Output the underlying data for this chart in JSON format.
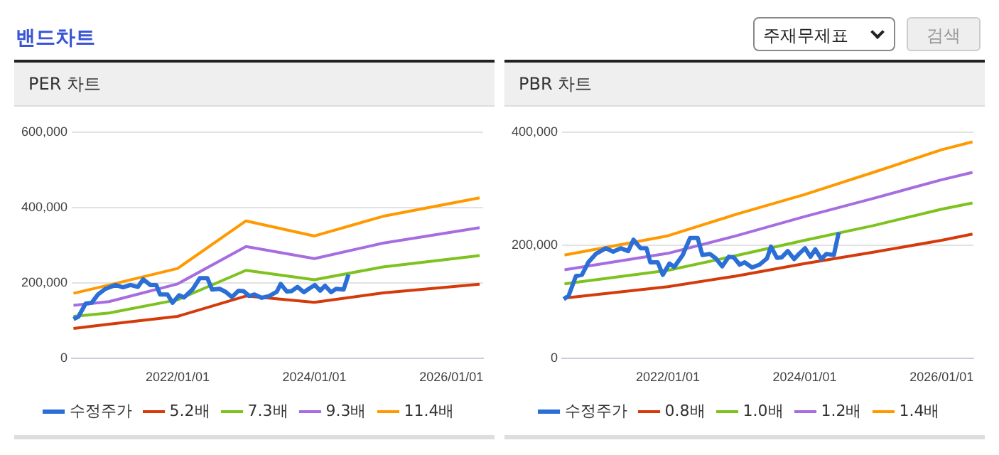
{
  "chart_data": [
    {
      "type": "line",
      "title": "PER 차트",
      "annotations": [
        "밴드차트"
      ],
      "xlim": [
        "2020-06-15",
        "2026-06-20"
      ],
      "xticks": [
        {
          "value": "2022-01-01",
          "label": "2022/01/01"
        },
        {
          "value": "2024-01-01",
          "label": "2024/01/01"
        },
        {
          "value": "2026-01-01",
          "label": "2026/01/01"
        }
      ],
      "ylim": [
        0,
        600000
      ],
      "yticks": [
        {
          "value": 0,
          "label": "0"
        },
        {
          "value": 200000,
          "label": "200,000"
        },
        {
          "value": 400000,
          "label": "400,000"
        },
        {
          "value": 600000,
          "label": "600,000"
        }
      ],
      "grid": "y",
      "legend": "bottom",
      "marker": "none",
      "line_style": "solid",
      "series": [
        {
          "name": "수정주가",
          "color": "#2b6fd6",
          "x": [
            "2020-06-24",
            "2020-07-20",
            "2020-08-28",
            "2020-09-29",
            "2020-11-02",
            "2020-12-12",
            "2021-02-04",
            "2021-03-15",
            "2021-04-24",
            "2021-06-03",
            "2021-07-01",
            "2021-08-08",
            "2021-09-09",
            "2021-09-29",
            "2021-11-08",
            "2021-12-05",
            "2022-01-09",
            "2022-02-04",
            "2022-03-21",
            "2022-04-29",
            "2022-06-09",
            "2022-07-04",
            "2022-08-13",
            "2022-09-14",
            "2022-10-18",
            "2022-11-22",
            "2022-12-18",
            "2023-01-19",
            "2023-02-15",
            "2023-03-26",
            "2023-05-05",
            "2023-06-14",
            "2023-07-05",
            "2023-08-06",
            "2023-09-01",
            "2023-10-03",
            "2023-11-06",
            "2023-12-02",
            "2024-01-03",
            "2024-02-01",
            "2024-02-27",
            "2024-03-30",
            "2024-04-26",
            "2024-06-05",
            "2024-07-01"
          ],
          "values": [
            105000,
            111000,
            146000,
            148000,
            170000,
            185000,
            195000,
            189000,
            195000,
            190000,
            210000,
            195000,
            195000,
            170000,
            170000,
            148000,
            168000,
            162000,
            183000,
            213000,
            213000,
            183000,
            185000,
            177000,
            163000,
            180000,
            179000,
            166000,
            170000,
            161000,
            166000,
            177000,
            198000,
            178000,
            179000,
            190000,
            176000,
            185000,
            195000,
            180000,
            193000,
            176000,
            185000,
            183000,
            223000
          ]
        },
        {
          "name": "5.2배",
          "color": "#d43a0a",
          "x": [
            "2020-06-24",
            "2020-12-31",
            "2022-01-01",
            "2023-01-01",
            "2024-01-01",
            "2025-01-01",
            "2026-06-01"
          ],
          "values": [
            80000,
            91000,
            112000,
            166000,
            149000,
            174000,
            197000
          ]
        },
        {
          "name": "7.3배",
          "color": "#7dc21e",
          "x": [
            "2020-06-24",
            "2020-12-31",
            "2022-01-01",
            "2023-01-01",
            "2024-01-01",
            "2025-01-01",
            "2026-06-01"
          ],
          "values": [
            112000,
            121000,
            156000,
            234000,
            209000,
            243000,
            273000
          ]
        },
        {
          "name": "9.3배",
          "color": "#a66de0",
          "x": [
            "2020-06-24",
            "2020-12-31",
            "2022-01-01",
            "2023-01-01",
            "2024-01-01",
            "2025-01-01",
            "2026-06-01"
          ],
          "values": [
            141000,
            151000,
            198000,
            297000,
            265000,
            306000,
            347000
          ]
        },
        {
          "name": "11.4배",
          "color": "#ff9900",
          "x": [
            "2020-06-24",
            "2020-12-31",
            "2022-01-01",
            "2023-01-01",
            "2024-01-01",
            "2025-01-01",
            "2026-06-01"
          ],
          "values": [
            173000,
            195000,
            239000,
            365000,
            325000,
            377000,
            426000
          ]
        }
      ]
    },
    {
      "type": "line",
      "title": "PBR 차트",
      "annotations": [
        "주재무제표",
        "검색"
      ],
      "xlim": [
        "2020-06-15",
        "2026-06-20"
      ],
      "xticks": [
        {
          "value": "2022-01-01",
          "label": "2022/01/01"
        },
        {
          "value": "2024-01-01",
          "label": "2024/01/01"
        },
        {
          "value": "2026-01-01",
          "label": "2026/01/01"
        }
      ],
      "ylim": [
        0,
        400000
      ],
      "yticks": [
        {
          "value": 0,
          "label": "0"
        },
        {
          "value": 200000,
          "label": "200,000"
        },
        {
          "value": 400000,
          "label": "400,000"
        }
      ],
      "grid": "y",
      "legend": "bottom",
      "marker": "none",
      "line_style": "solid",
      "series": [
        {
          "name": "수정주가",
          "color": "#2b6fd6",
          "x": [
            "2020-06-24",
            "2020-07-20",
            "2020-08-28",
            "2020-09-29",
            "2020-11-02",
            "2020-12-12",
            "2021-02-04",
            "2021-03-15",
            "2021-04-24",
            "2021-06-03",
            "2021-07-01",
            "2021-08-08",
            "2021-09-09",
            "2021-09-29",
            "2021-11-08",
            "2021-12-05",
            "2022-01-09",
            "2022-02-04",
            "2022-03-21",
            "2022-04-29",
            "2022-06-09",
            "2022-07-04",
            "2022-08-13",
            "2022-09-14",
            "2022-10-18",
            "2022-11-22",
            "2022-12-18",
            "2023-01-19",
            "2023-02-15",
            "2023-03-26",
            "2023-05-05",
            "2023-06-14",
            "2023-07-05",
            "2023-08-06",
            "2023-09-01",
            "2023-10-03",
            "2023-11-06",
            "2023-12-02",
            "2024-01-03",
            "2024-02-01",
            "2024-02-27",
            "2024-03-30",
            "2024-04-26",
            "2024-06-05",
            "2024-07-01"
          ],
          "values": [
            105000,
            111000,
            146000,
            148000,
            170000,
            185000,
            195000,
            189000,
            195000,
            190000,
            210000,
            195000,
            195000,
            170000,
            170000,
            148000,
            168000,
            162000,
            183000,
            213000,
            213000,
            183000,
            185000,
            177000,
            163000,
            180000,
            179000,
            166000,
            170000,
            161000,
            166000,
            177000,
            198000,
            178000,
            179000,
            190000,
            176000,
            185000,
            195000,
            180000,
            193000,
            176000,
            185000,
            183000,
            223000
          ]
        },
        {
          "name": "0.8배",
          "color": "#d43a0a",
          "x": [
            "2020-06-28",
            "2022-01-01",
            "2023-01-01",
            "2024-01-01",
            "2025-01-01",
            "2026-01-01",
            "2026-06-15"
          ],
          "values": [
            107000,
            127000,
            146000,
            168000,
            188000,
            209000,
            220000
          ]
        },
        {
          "name": "1.0배",
          "color": "#7dc21e",
          "x": [
            "2020-06-28",
            "2022-01-01",
            "2023-01-01",
            "2024-01-01",
            "2025-01-01",
            "2026-01-01",
            "2026-06-15"
          ],
          "values": [
            132000,
            156000,
            182000,
            209000,
            235000,
            264000,
            275000
          ]
        },
        {
          "name": "1.2배",
          "color": "#a66de0",
          "x": [
            "2020-06-28",
            "2022-01-01",
            "2023-01-01",
            "2024-01-01",
            "2025-01-01",
            "2026-01-01",
            "2026-06-15"
          ],
          "values": [
            157000,
            186000,
            217000,
            251000,
            283000,
            316000,
            329000
          ]
        },
        {
          "name": "1.4배",
          "color": "#ff9900",
          "x": [
            "2020-06-28",
            "2022-01-01",
            "2023-01-01",
            "2024-01-01",
            "2025-01-01",
            "2026-01-01",
            "2026-06-15"
          ],
          "values": [
            183000,
            217000,
            255000,
            290000,
            329000,
            369000,
            383000
          ]
        }
      ]
    }
  ]
}
